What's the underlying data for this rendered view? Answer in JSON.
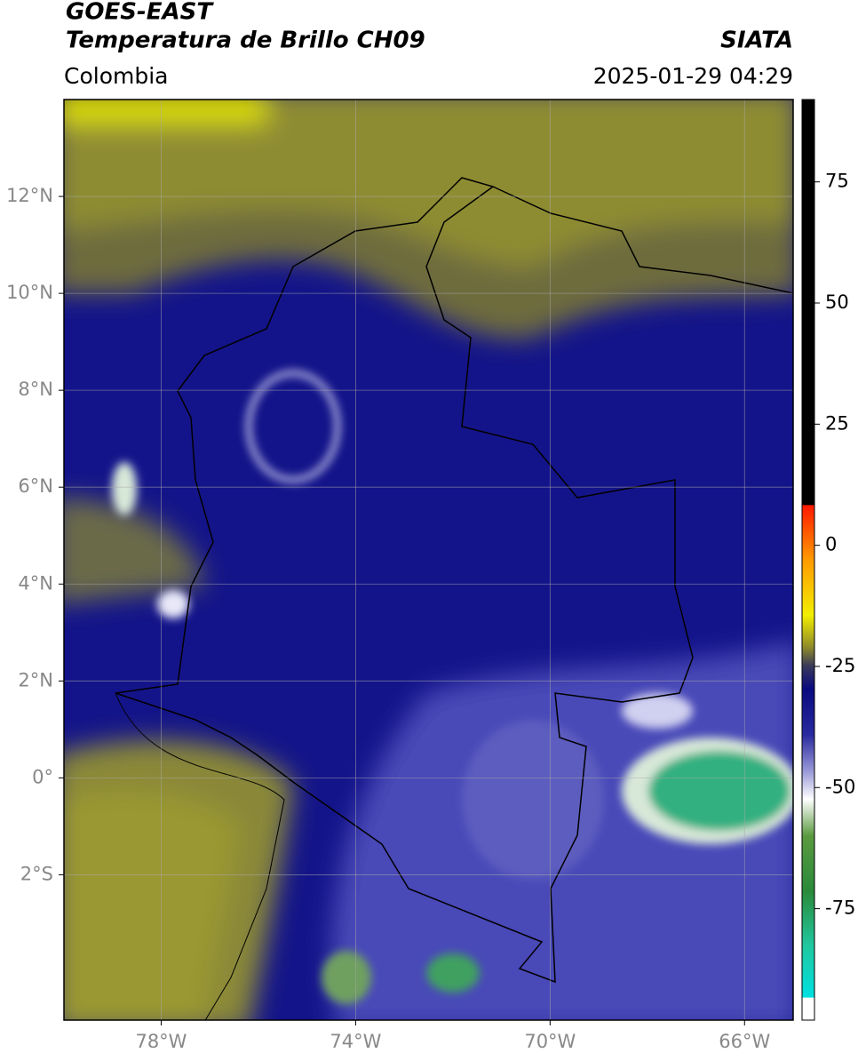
{
  "header": {
    "title": "GOES-EAST",
    "subtitle": "Temperatura de Brillo CH09",
    "source": "SIATA",
    "region": "Colombia",
    "timestamp": "2025-01-29 04:29"
  },
  "map": {
    "xlim": [
      -80,
      -65
    ],
    "ylim": [
      -5,
      14
    ],
    "xticks": [
      {
        "value": -78,
        "label": "78°W"
      },
      {
        "value": -74,
        "label": "74°W"
      },
      {
        "value": -70,
        "label": "70°W"
      },
      {
        "value": -66,
        "label": "66°W"
      }
    ],
    "yticks": [
      {
        "value": 12,
        "label": "12°N"
      },
      {
        "value": 10,
        "label": "10°N"
      },
      {
        "value": 8,
        "label": "8°N"
      },
      {
        "value": 6,
        "label": "6°N"
      },
      {
        "value": 4,
        "label": "4°N"
      },
      {
        "value": 2,
        "label": "2°N"
      },
      {
        "value": 0,
        "label": "0°"
      },
      {
        "value": -2,
        "label": "2°S"
      }
    ],
    "grid": true
  },
  "colorbar": {
    "ylim": [
      -98,
      92
    ],
    "yticks": [
      75,
      50,
      25,
      0,
      -25,
      -50,
      -75
    ]
  }
}
